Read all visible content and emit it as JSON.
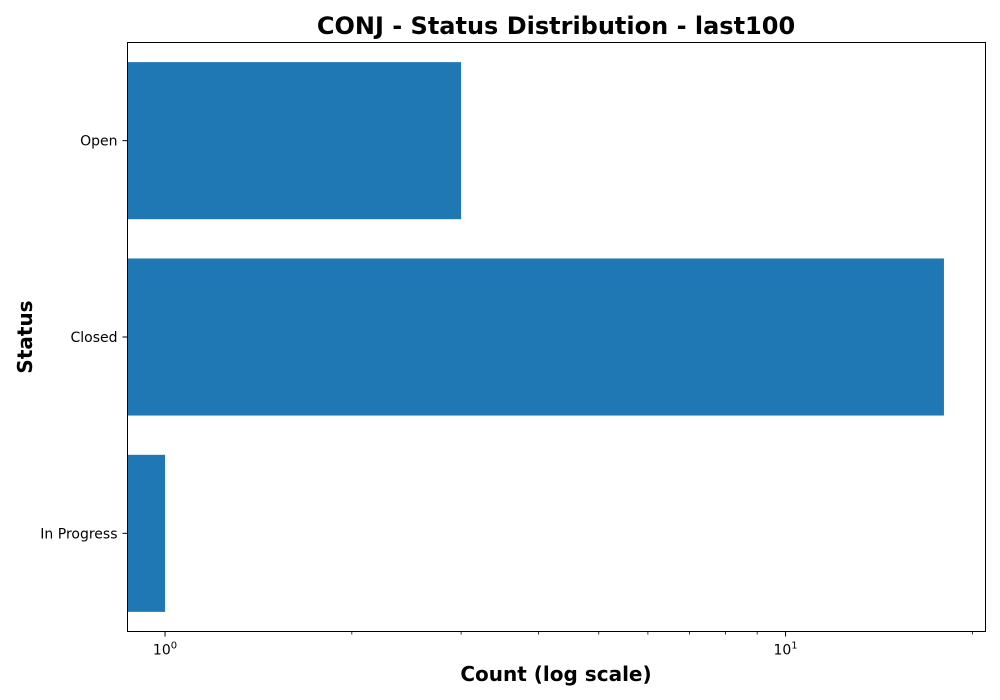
{
  "chart_data": {
    "type": "bar",
    "orientation": "horizontal",
    "title": "CONJ - Status Distribution - last100",
    "xlabel": "Count (log scale)",
    "ylabel": "Status",
    "x_scale": "log",
    "xlim": [
      0.87,
      21
    ],
    "x_major_ticks": [
      1,
      10
    ],
    "x_minor_ticks": [
      2,
      3,
      4,
      5,
      6,
      7,
      8,
      9,
      20
    ],
    "categories": [
      "Open",
      "Closed",
      "In Progress"
    ],
    "values": [
      3,
      18,
      1
    ],
    "bar_color": "#1f77b4",
    "grid": false,
    "legend": "none"
  }
}
